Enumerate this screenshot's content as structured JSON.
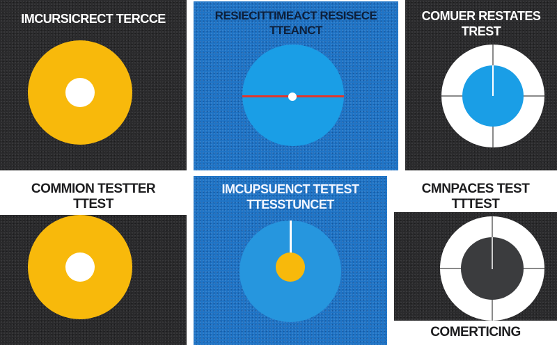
{
  "panels": {
    "top_left": {
      "title": "IMCURSICRECT TERCCE"
    },
    "top_middle": {
      "title_line1": "RESIECITTIMEACT RESISECE",
      "title_line2": "TTEANCT"
    },
    "top_right": {
      "title_line1": "COMUER RESTATES",
      "title_line2": "TREST"
    },
    "bottom_left": {
      "title_line1": "COMMION TESTTER",
      "title_line2": "TTEST"
    },
    "bottom_middle": {
      "title_line1": "IMCUPSUENCT TETEST",
      "title_line2": "TTESSTUNCET"
    },
    "bottom_right": {
      "title_line1": "CMNPACES TEST",
      "title_line2": "TTTEST",
      "footer": "COMERTICING"
    }
  },
  "colors": {
    "yellow": "#f8b90b",
    "blue_panel": "#1f74c6",
    "dark_panel": "#2b2b2d",
    "cyan_disc": "#1a9ee6",
    "red_line": "#e2362c"
  }
}
